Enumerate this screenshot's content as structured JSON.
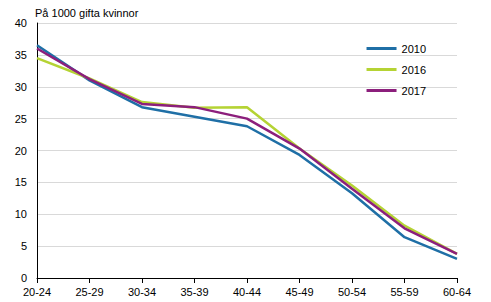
{
  "chart_data": {
    "type": "line",
    "title": "På 1000 gifta kvinnor",
    "categories": [
      "20-24",
      "25-29",
      "30-34",
      "35-39",
      "40-44",
      "45-49",
      "50-54",
      "55-59",
      "60-64"
    ],
    "series": [
      {
        "name": "2010",
        "color": "#1f6fa6",
        "values": [
          36.5,
          31.0,
          26.8,
          25.3,
          23.8,
          19.3,
          13.3,
          6.4,
          3.0
        ]
      },
      {
        "name": "2016",
        "color": "#b5d334",
        "values": [
          34.5,
          31.3,
          27.6,
          26.7,
          26.8,
          20.3,
          14.5,
          8.2,
          3.8
        ]
      },
      {
        "name": "2017",
        "color": "#8c1f7c",
        "values": [
          36.0,
          31.2,
          27.3,
          26.8,
          25.0,
          20.3,
          14.0,
          7.8,
          3.8
        ]
      }
    ],
    "ylim": [
      0,
      40
    ],
    "yticks": [
      0,
      5,
      10,
      15,
      20,
      25,
      30,
      35,
      40
    ],
    "grid": true,
    "legend": "upper right"
  }
}
